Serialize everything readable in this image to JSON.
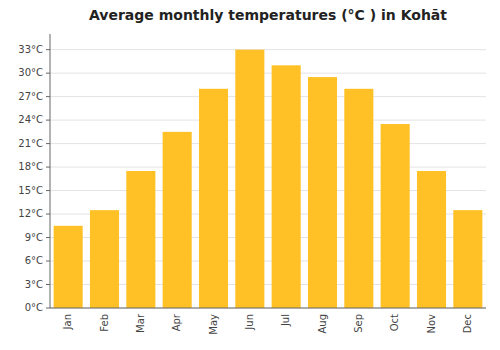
{
  "chart_data": {
    "type": "bar",
    "title": "Average monthly temperatures (°C ) in Kohāt",
    "categories": [
      "Jan",
      "Feb",
      "Mar",
      "Apr",
      "May",
      "Jun",
      "Jul",
      "Aug",
      "Sep",
      "Oct",
      "Nov",
      "Dec"
    ],
    "values": [
      10.5,
      12.5,
      17.5,
      22.5,
      28.0,
      33.0,
      31.0,
      29.5,
      28.0,
      23.5,
      17.5,
      12.5
    ],
    "color": "#FFC125",
    "ylim": [
      0,
      35
    ],
    "yticks": [
      {
        "value": 0,
        "label": "0°C"
      },
      {
        "value": 3,
        "label": "3°C"
      },
      {
        "value": 6,
        "label": "6°C"
      },
      {
        "value": 9,
        "label": "9°C"
      },
      {
        "value": 12,
        "label": "12°C"
      },
      {
        "value": 15,
        "label": "15°C"
      },
      {
        "value": 18,
        "label": "18°C"
      },
      {
        "value": 21,
        "label": "21°C"
      },
      {
        "value": 24,
        "label": "24°C"
      },
      {
        "value": 27,
        "label": "27°C"
      },
      {
        "value": 30,
        "label": "30°C"
      },
      {
        "value": 33,
        "label": "33°C"
      }
    ],
    "grid": true
  }
}
